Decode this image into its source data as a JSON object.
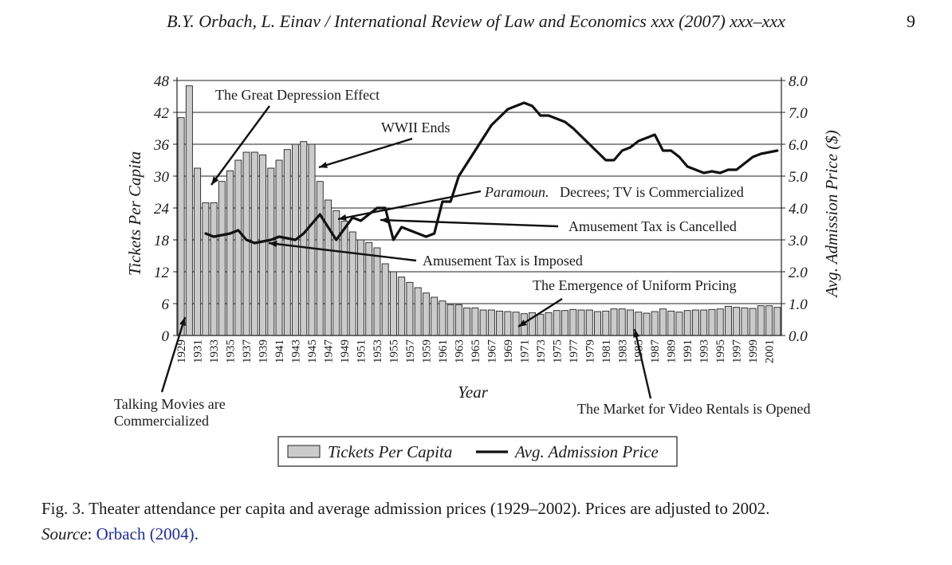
{
  "header": {
    "title": "B.Y. Orbach, L. Einav / International Review of Law and Economics xxx (2007) xxx–xxx",
    "page_number": "9"
  },
  "chart_data": {
    "type": "bar+line",
    "title": "",
    "xlabel": "Year",
    "ylabel_left": "Tickets Per Capita",
    "ylabel_right": "Avg. Admission Price ($)",
    "ylim_left": [
      0,
      48
    ],
    "ylim_right": [
      0,
      8
    ],
    "left_ticks": [
      "0",
      "6",
      "12",
      "18",
      "24",
      "30",
      "36",
      "42",
      "48"
    ],
    "right_ticks": [
      "0.0",
      "1.0",
      "2.0",
      "3.0",
      "4.0",
      "5.0",
      "6.0",
      "7.0",
      "8.0"
    ],
    "x_tick_labels": [
      "1929",
      "1931",
      "1933",
      "1935",
      "1937",
      "1939",
      "1941",
      "1943",
      "1945",
      "1947",
      "1949",
      "1951",
      "1953",
      "1955",
      "1957",
      "1959",
      "1961",
      "1963",
      "1965",
      "1967",
      "1969",
      "1971",
      "1973",
      "1975",
      "1977",
      "1979",
      "1981",
      "1983",
      "1985",
      "1987",
      "1989",
      "1991",
      "1993",
      "1995",
      "1997",
      "1999",
      "2001"
    ],
    "grid": true,
    "legend_position": "bottom-center",
    "legend": [
      "Tickets Per Capita",
      "Avg. Admission Price"
    ],
    "bar_color": "#cbcbcb",
    "line_color": "#111111",
    "series": [
      {
        "name": "Tickets Per Capita",
        "kind": "bar",
        "start_year": 1929,
        "values": [
          41,
          47,
          31.5,
          25,
          25,
          29,
          31,
          33,
          34.5,
          34.5,
          34,
          31.5,
          33,
          35,
          36,
          36.5,
          36,
          29,
          25.5,
          23.5,
          21.5,
          19.5,
          18,
          17.5,
          16.5,
          13.5,
          12,
          11,
          10,
          9,
          8,
          7.2,
          6.5,
          5.8,
          5.8,
          5.2,
          5.2,
          4.8,
          4.8,
          4.6,
          4.5,
          4.4,
          4.1,
          4.3,
          4.0,
          4.3,
          4.7,
          4.7,
          4.9,
          4.8,
          4.8,
          4.5,
          4.6,
          5.0,
          5.0,
          4.8,
          4.4,
          4.2,
          4.5,
          5.0,
          4.6,
          4.4,
          4.7,
          4.8,
          4.8,
          4.9,
          5.0,
          5.5,
          5.3,
          5.2,
          5.1,
          5.6,
          5.6,
          5.3
        ]
      },
      {
        "name": "Avg. Admission Price",
        "kind": "line",
        "x": [
          1932,
          1933,
          1935,
          1936,
          1937,
          1938,
          1940,
          1941,
          1943,
          1944,
          1945,
          1946,
          1947,
          1948,
          1950,
          1951,
          1952,
          1953,
          1954,
          1955,
          1956,
          1957,
          1958,
          1959,
          1960,
          1961,
          1962,
          1963,
          1965,
          1967,
          1969,
          1971,
          1972,
          1973,
          1974,
          1975,
          1976,
          1977,
          1979,
          1981,
          1982,
          1983,
          1984,
          1985,
          1986,
          1987,
          1988,
          1989,
          1990,
          1991,
          1992,
          1993,
          1994,
          1995,
          1996,
          1997,
          1998,
          1999,
          2000,
          2002
        ],
        "y": [
          3.2,
          3.1,
          3.2,
          3.3,
          3.0,
          2.9,
          3.0,
          3.1,
          3.0,
          3.2,
          3.5,
          3.8,
          3.4,
          3.0,
          3.7,
          3.6,
          3.8,
          4.0,
          4.0,
          3.0,
          3.4,
          3.3,
          3.2,
          3.1,
          3.2,
          4.2,
          4.2,
          5.0,
          5.8,
          6.6,
          7.1,
          7.3,
          7.2,
          6.9,
          6.9,
          6.8,
          6.7,
          6.5,
          6.0,
          5.5,
          5.5,
          5.8,
          5.9,
          6.1,
          6.2,
          6.3,
          5.8,
          5.8,
          5.6,
          5.3,
          5.2,
          5.1,
          5.15,
          5.1,
          5.2,
          5.2,
          5.4,
          5.6,
          5.7,
          5.8
        ]
      }
    ],
    "annotations": [
      {
        "key": "depression",
        "text": "The Great Depression Effect",
        "italic": false
      },
      {
        "key": "wwii",
        "text": "WWII Ends",
        "italic": false
      },
      {
        "key": "paramount_italic",
        "text": "Paramoun.",
        "italic": true
      },
      {
        "key": "paramount_rest",
        "text": "Decrees; TV is Commercialized",
        "italic": false
      },
      {
        "key": "tax_cancelled",
        "text": "Amusement Tax is Cancelled",
        "italic": false
      },
      {
        "key": "tax_imposed",
        "text": "Amusement Tax is Imposed",
        "italic": false
      },
      {
        "key": "uniform_pricing",
        "text": "The Emergence of Uniform Pricing",
        "italic": false
      },
      {
        "key": "talking_1",
        "text": "Talking Movies are",
        "italic": false
      },
      {
        "key": "talking_2",
        "text": "Commercialized",
        "italic": false
      },
      {
        "key": "video_rentals",
        "text": "The Market for Video Rentals is Opened",
        "italic": false
      }
    ]
  },
  "caption": {
    "fig_text": "Fig. 3. Theater attendance per capita and average admission prices (1929–2002). Prices are adjusted to 2002.",
    "source_label": "Source",
    "source_sep": ": ",
    "source_citation": "Orbach (2004)",
    "source_end": "."
  }
}
